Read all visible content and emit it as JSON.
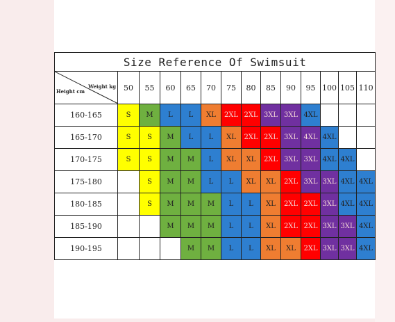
{
  "table": {
    "title": "Size Reference Of Swimsuit",
    "corner_weight_label": "Weight kg",
    "corner_height_label": "Height cm",
    "weights": [
      "50",
      "55",
      "60",
      "65",
      "70",
      "75",
      "80",
      "85",
      "90",
      "95",
      "100",
      "105",
      "110"
    ],
    "colors": {
      "Y": "#ffff00",
      "G": "#6fb040",
      "B": "#2e7fd0",
      "O": "#ef7d31",
      "R": "#ff0000",
      "P": "#7030a0",
      "W": "#ffffff"
    },
    "rows": [
      {
        "height": "160-165",
        "sizes": [
          "S",
          "M",
          "L",
          "L",
          "XL",
          "2XL",
          "2XL",
          "3XL",
          "3XL",
          "4XL",
          "",
          "",
          ""
        ],
        "colors": [
          "Y",
          "G",
          "B",
          "B",
          "O",
          "R",
          "R",
          "P",
          "P",
          "B",
          "W",
          "W",
          "W"
        ]
      },
      {
        "height": "165-170",
        "sizes": [
          "S",
          "S",
          "M",
          "L",
          "L",
          "XL",
          "2XL",
          "2XL",
          "3XL",
          "4XL",
          "4XL",
          "",
          ""
        ],
        "colors": [
          "Y",
          "Y",
          "G",
          "B",
          "B",
          "O",
          "R",
          "R",
          "P",
          "P",
          "B",
          "W",
          "W"
        ]
      },
      {
        "height": "170-175",
        "sizes": [
          "S",
          "S",
          "M",
          "M",
          "L",
          "XL",
          "XL",
          "2XL",
          "3XL",
          "3XL",
          "4XL",
          "4XL",
          ""
        ],
        "colors": [
          "Y",
          "Y",
          "G",
          "G",
          "B",
          "O",
          "O",
          "R",
          "P",
          "P",
          "B",
          "B",
          "W"
        ]
      },
      {
        "height": "175-180",
        "sizes": [
          "",
          "S",
          "M",
          "M",
          "L",
          "L",
          "XL",
          "XL",
          "2XL",
          "3XL",
          "3XL",
          "4XL",
          "4XL"
        ],
        "colors": [
          "W",
          "Y",
          "G",
          "G",
          "B",
          "B",
          "O",
          "O",
          "R",
          "P",
          "P",
          "B",
          "B"
        ]
      },
      {
        "height": "180-185",
        "sizes": [
          "",
          "S",
          "M",
          "M",
          "M",
          "L",
          "L",
          "XL",
          "2XL",
          "2XL",
          "3XL",
          "4XL",
          "4XL"
        ],
        "colors": [
          "W",
          "Y",
          "G",
          "G",
          "G",
          "B",
          "B",
          "O",
          "R",
          "R",
          "P",
          "B",
          "B"
        ]
      },
      {
        "height": "185-190",
        "sizes": [
          "",
          "",
          "M",
          "M",
          "M",
          "L",
          "L",
          "XL",
          "2XL",
          "2XL",
          "3XL",
          "3XL",
          "4XL"
        ],
        "colors": [
          "W",
          "W",
          "G",
          "G",
          "G",
          "B",
          "B",
          "O",
          "R",
          "R",
          "P",
          "P",
          "B"
        ]
      },
      {
        "height": "190-195",
        "sizes": [
          "",
          "",
          "",
          "M",
          "M",
          "L",
          "L",
          "XL",
          "XL",
          "2XL",
          "3XL",
          "3XL",
          "4XL"
        ],
        "colors": [
          "W",
          "W",
          "W",
          "G",
          "G",
          "B",
          "B",
          "O",
          "O",
          "R",
          "P",
          "P",
          "B"
        ]
      }
    ]
  }
}
